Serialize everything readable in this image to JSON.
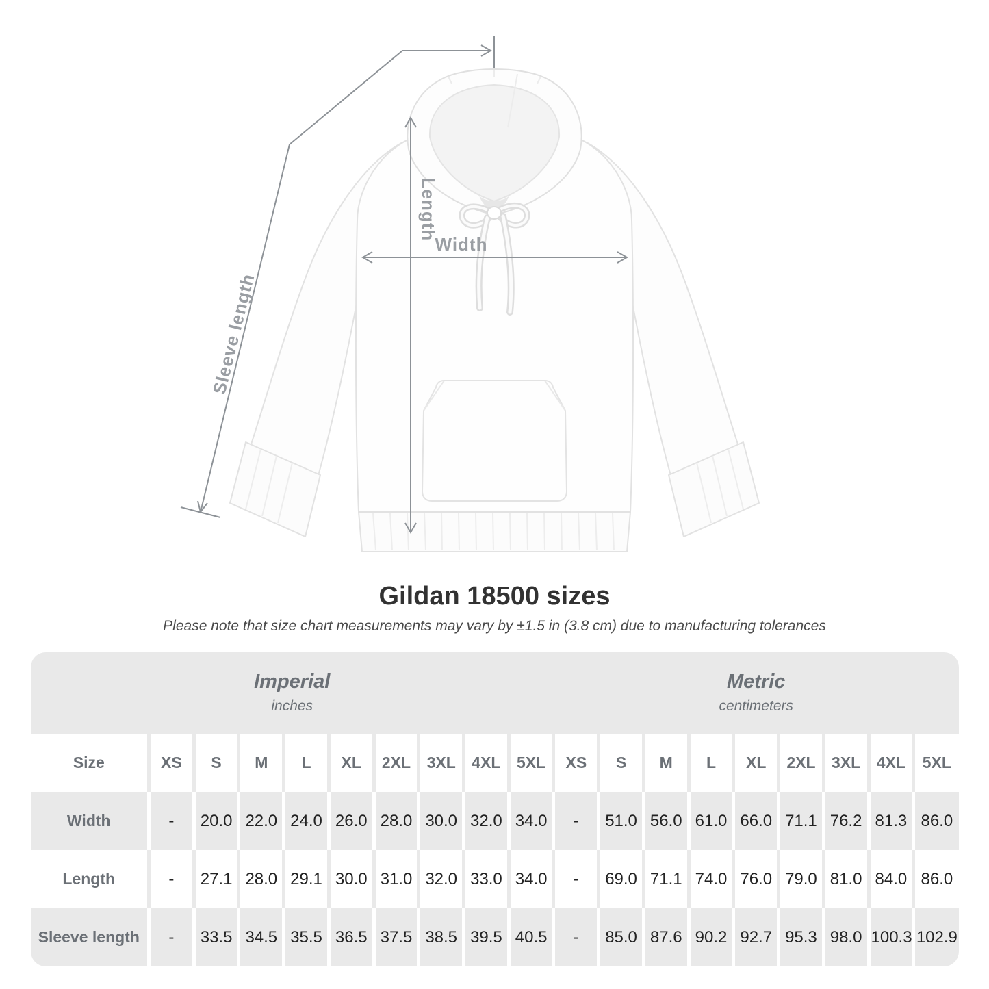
{
  "title": "Gildan 18500 sizes",
  "subtitle": "Please note that size chart measurements may vary by ±1.5 in (3.8 cm) due to manufacturing tolerances",
  "figure": {
    "measure_labels": {
      "length": "Length",
      "width": "Width",
      "sleeve": "Sleeve length"
    }
  },
  "chart_data": {
    "type": "table",
    "title": "Gildan 18500 sizes",
    "corner_header": "Size",
    "groups": [
      {
        "label": "Imperial",
        "sublabel": "inches"
      },
      {
        "label": "Metric",
        "sublabel": "centimeters"
      }
    ],
    "sizes": [
      "XS",
      "S",
      "M",
      "L",
      "XL",
      "2XL",
      "3XL",
      "4XL",
      "5XL"
    ],
    "rows": [
      {
        "label": "Width",
        "imperial": [
          "-",
          "20.0",
          "22.0",
          "24.0",
          "26.0",
          "28.0",
          "30.0",
          "32.0",
          "34.0"
        ],
        "metric": [
          "-",
          "51.0",
          "56.0",
          "61.0",
          "66.0",
          "71.1",
          "76.2",
          "81.3",
          "86.0"
        ]
      },
      {
        "label": "Length",
        "imperial": [
          "-",
          "27.1",
          "28.0",
          "29.1",
          "30.0",
          "31.0",
          "32.0",
          "33.0",
          "34.0"
        ],
        "metric": [
          "-",
          "69.0",
          "71.1",
          "74.0",
          "76.0",
          "79.0",
          "81.0",
          "84.0",
          "86.0"
        ]
      },
      {
        "label": "Sleeve length",
        "imperial": [
          "-",
          "33.5",
          "34.5",
          "35.5",
          "36.5",
          "37.5",
          "38.5",
          "39.5",
          "40.5"
        ],
        "metric": [
          "-",
          "85.0",
          "87.6",
          "90.2",
          "92.7",
          "95.3",
          "98.0",
          "100.3",
          "102.9"
        ]
      }
    ]
  },
  "colors": {
    "row_gray": "#e9e9e9",
    "header_text": "#6b7076",
    "value_text": "#222222",
    "measure_line": "#8d9297",
    "measure_label": "#9a9ea3",
    "garment_outline": "#e2e2e2"
  }
}
